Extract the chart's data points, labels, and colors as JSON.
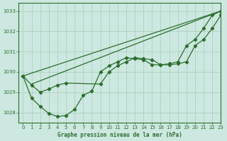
{
  "title": "Graphe pression niveau de la mer (hPa)",
  "bg_color": "#cce8e0",
  "grid_color": "#aaccbb",
  "line_color": "#2d6e2d",
  "xlim": [
    -0.5,
    23
  ],
  "ylim": [
    1027.5,
    1033.4
  ],
  "yticks": [
    1028,
    1029,
    1030,
    1031,
    1032,
    1033
  ],
  "xticks": [
    0,
    1,
    2,
    3,
    4,
    5,
    6,
    7,
    8,
    9,
    10,
    11,
    12,
    13,
    14,
    15,
    16,
    17,
    18,
    19,
    20,
    21,
    22,
    23
  ],
  "line_upper_envelope": {
    "x": [
      0,
      23
    ],
    "y": [
      1029.8,
      1033.0
    ]
  },
  "line_lower_envelope": {
    "x": [
      1,
      23
    ],
    "y": [
      1029.4,
      1033.0
    ]
  },
  "line_with_markers_main": {
    "x": [
      0,
      1,
      2,
      3,
      4,
      5,
      6,
      7,
      8,
      9,
      10,
      11,
      12,
      13,
      14,
      15,
      16,
      17,
      18,
      19,
      20,
      21,
      22,
      23
    ],
    "y": [
      1029.8,
      1028.7,
      1028.3,
      1027.95,
      1027.8,
      1027.85,
      1028.15,
      1028.85,
      1029.05,
      1030.0,
      1030.3,
      1030.5,
      1030.7,
      1030.65,
      1030.6,
      1030.35,
      1030.35,
      1030.4,
      1030.5,
      1031.3,
      1031.6,
      1032.15,
      1032.8,
      1033.0
    ]
  },
  "line_with_markers_flat": {
    "x": [
      0,
      1,
      2,
      3,
      4,
      5,
      9,
      10,
      11,
      12,
      13,
      14,
      15,
      16,
      17,
      18,
      19,
      20,
      21,
      22,
      23
    ],
    "y": [
      1029.8,
      1029.35,
      1029.0,
      1029.15,
      1029.35,
      1029.45,
      1029.4,
      1030.0,
      1030.3,
      1030.5,
      1030.7,
      1030.65,
      1030.6,
      1030.35,
      1030.35,
      1030.4,
      1030.5,
      1031.3,
      1031.6,
      1032.15,
      1032.8
    ]
  }
}
